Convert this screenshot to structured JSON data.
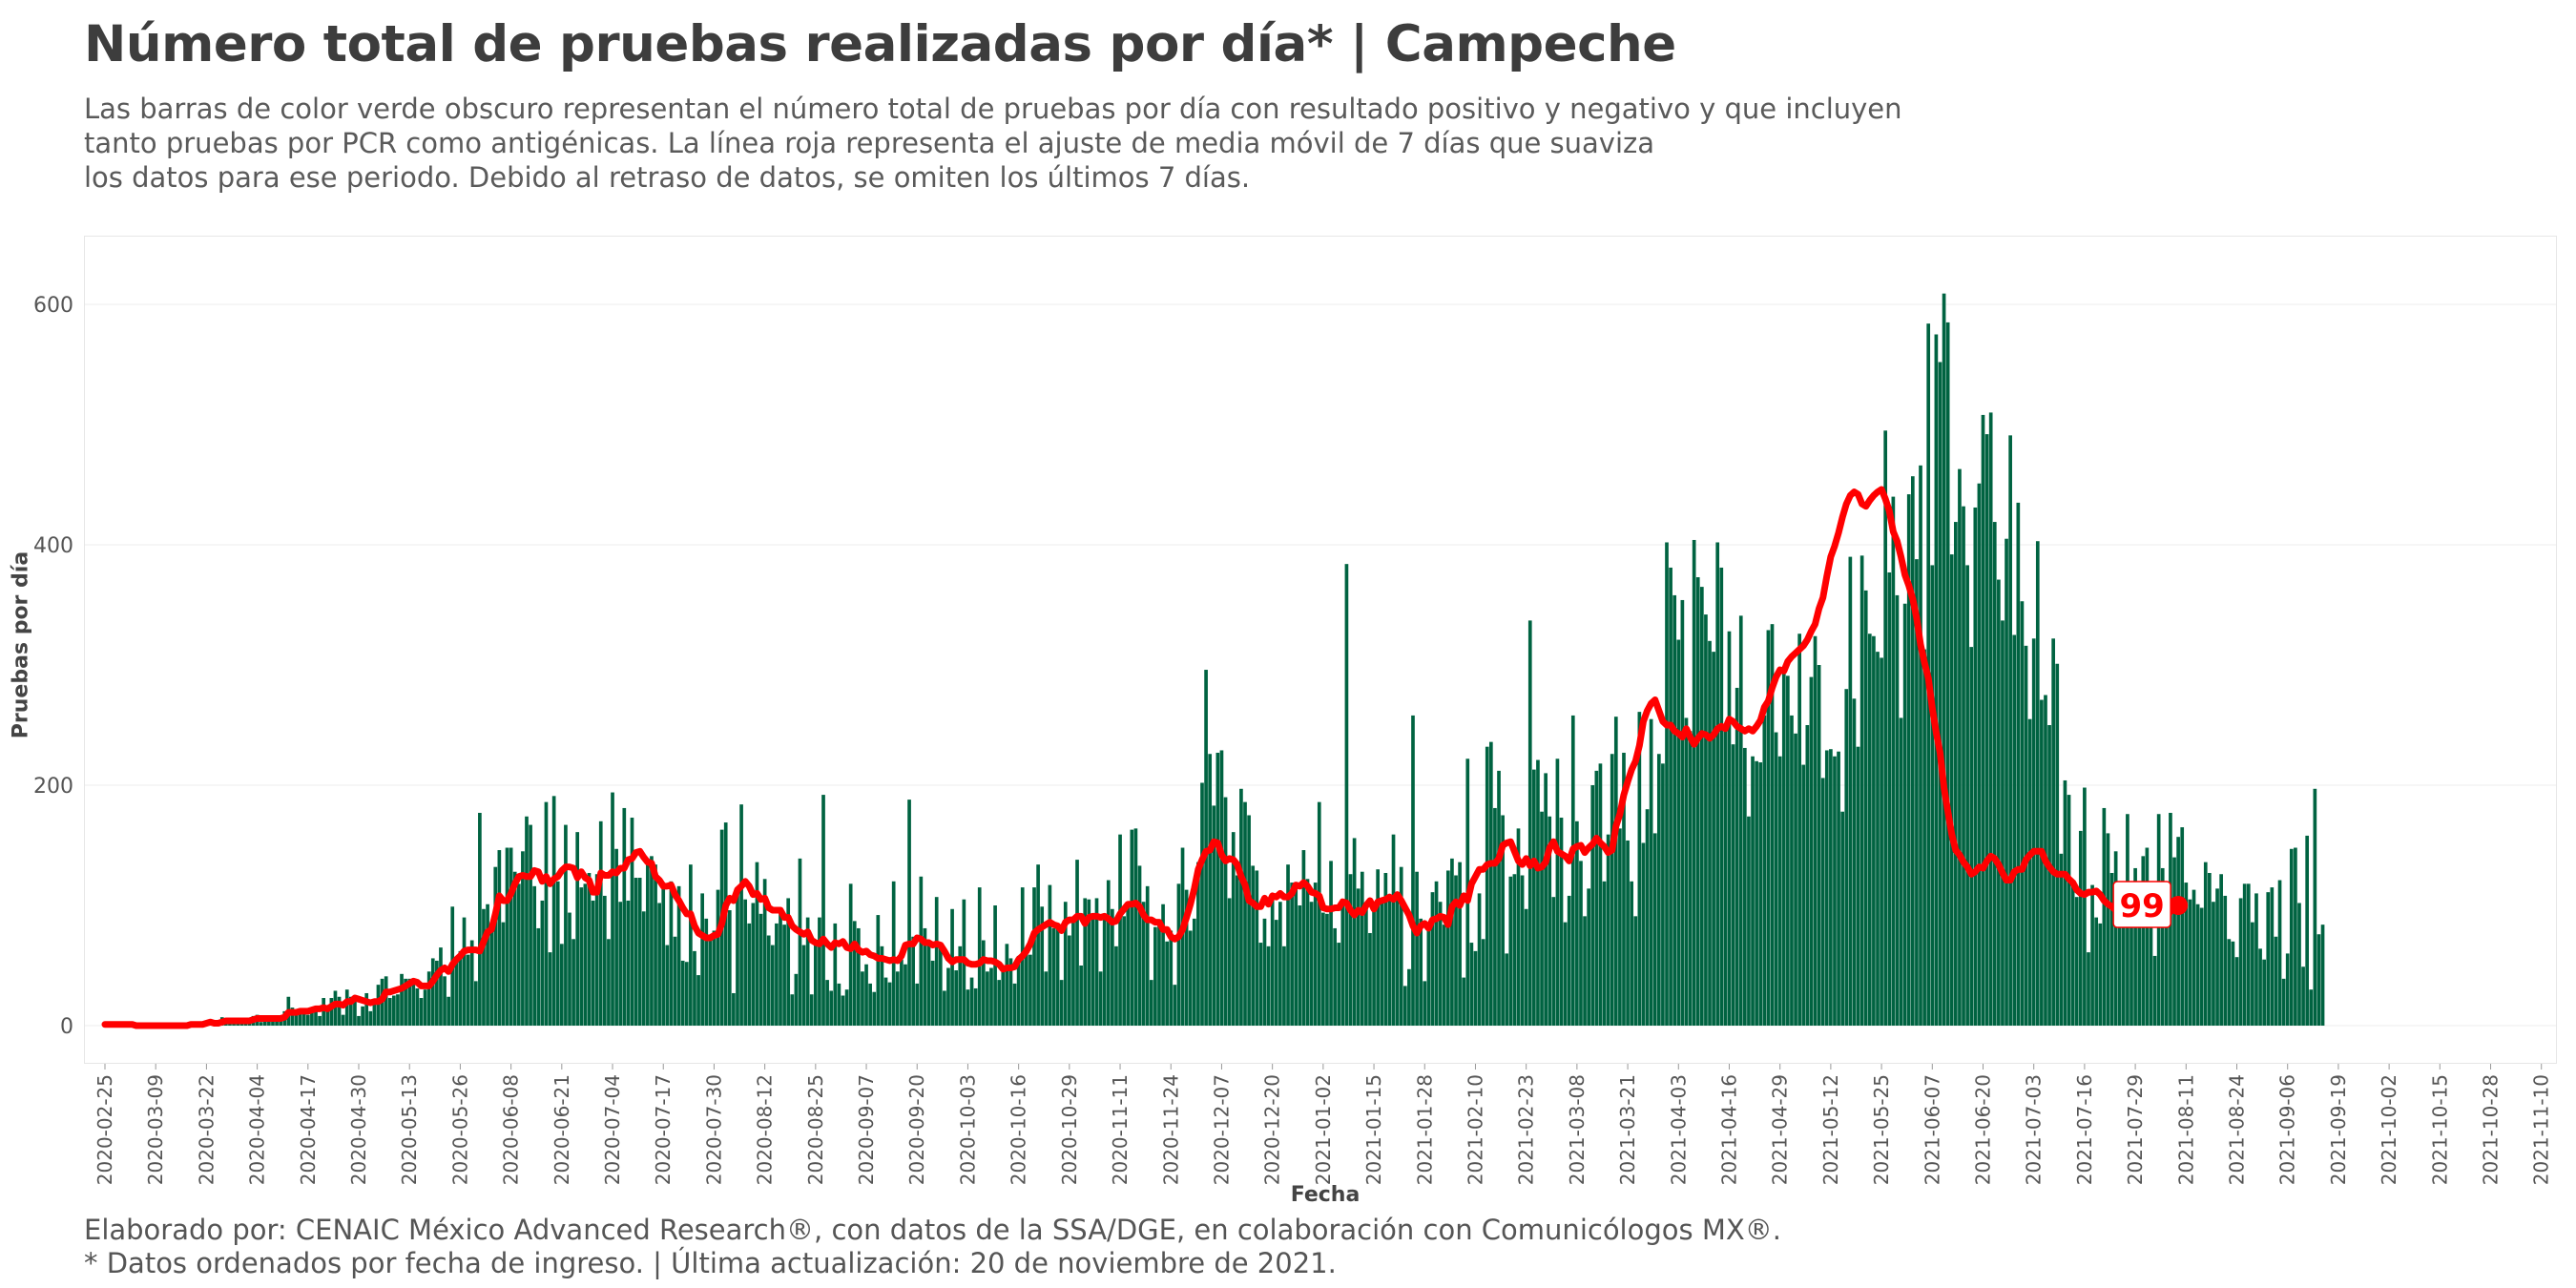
{
  "header": {
    "title": "Número total de pruebas realizadas por día* | Campeche",
    "subtitle_lines": [
      "Las barras de color verde obscuro representan el número total de pruebas por día con resultado positivo y negativo y que incluyen",
      "tanto pruebas por PCR como antigénicas. La línea roja representa el ajuste de media móvil de 7 días que suaviza",
      "los datos para ese periodo. Debido al retraso de datos, se omiten los últimos 7 días."
    ]
  },
  "footer": {
    "caption_lines": [
      "Elaborado por: CENAIC México Advanced Research®, con datos de la SSA/DGE, en colaboración con Comunicólogos MX®.",
      "* Datos ordenados por fecha de ingreso. | Última actualización: 20 de noviembre de 2021."
    ]
  },
  "colors": {
    "bars": "#006341",
    "moving_average": "#ff0000",
    "grid": "#eeeeee"
  },
  "chart_data": {
    "type": "bar",
    "title": "Número total de pruebas realizadas por día* | Campeche",
    "xlabel": "Fecha",
    "ylabel": "Pruebas por día",
    "x_start": "2020-02-25",
    "x_end": "2021-11-13",
    "ylim": [
      0,
      650
    ],
    "y_ticks": [
      0,
      200,
      400,
      600
    ],
    "x_tick_labels": [
      "2020-02-25",
      "2020-03-09",
      "2020-03-22",
      "2020-04-04",
      "2020-04-17",
      "2020-04-30",
      "2020-05-13",
      "2020-05-26",
      "2020-06-08",
      "2020-06-21",
      "2020-07-04",
      "2020-07-17",
      "2020-07-30",
      "2020-08-12",
      "2020-08-25",
      "2020-09-07",
      "2020-09-20",
      "2020-10-03",
      "2020-10-16",
      "2020-10-29",
      "2020-11-11",
      "2020-11-24",
      "2020-12-07",
      "2020-12-20",
      "2021-01-02",
      "2021-01-15",
      "2021-01-28",
      "2021-02-10",
      "2021-02-23",
      "2021-03-08",
      "2021-03-21",
      "2021-04-03",
      "2021-04-16",
      "2021-04-29",
      "2021-05-12",
      "2021-05-25",
      "2021-06-07",
      "2021-06-20",
      "2021-07-03",
      "2021-07-16",
      "2021-07-29",
      "2021-08-11",
      "2021-08-24",
      "2021-09-06",
      "2021-09-19",
      "2021-10-02",
      "2021-10-15",
      "2021-10-28",
      "2021-11-10"
    ],
    "series": [
      {
        "kind": "bar",
        "values": [
          1,
          0,
          1,
          1,
          0,
          0,
          0,
          0,
          1,
          0,
          0,
          1,
          0,
          1,
          0,
          0,
          0,
          1,
          0,
          1,
          0,
          1,
          1,
          3,
          3,
          2,
          2,
          3,
          1,
          2,
          7,
          4,
          3,
          6,
          4,
          3,
          4,
          5,
          8,
          9,
          3,
          4,
          7,
          4,
          6,
          7,
          12,
          24,
          15,
          9,
          12,
          12,
          9,
          11,
          16,
          8,
          23,
          14,
          23,
          29,
          24,
          9,
          30,
          24,
          25,
          8,
          16,
          27,
          12,
          22,
          34,
          39,
          41,
          23,
          25,
          26,
          43,
          39,
          39,
          37,
          31,
          23,
          30,
          45,
          56,
          54,
          65,
          41,
          24,
          99,
          54,
          62,
          90,
          59,
          71,
          37,
          177,
          97,
          101,
          86,
          132,
          146,
          86,
          148,
          148,
          128,
          118,
          145,
          174,
          167,
          116,
          81,
          104,
          186,
          61,
          191,
          120,
          68,
          167,
          94,
          72,
          161,
          115,
          118,
          127,
          104,
          126,
          170,
          108,
          72,
          194,
          147,
          103,
          181,
          104,
          173,
          123,
          123,
          95,
          139,
          141,
          134,
          102,
          117,
          67,
          120,
          74,
          116,
          54,
          53,
          134,
          62,
          42,
          110,
          89,
          73,
          79,
          113,
          163,
          169,
          96,
          27,
          114,
          184,
          105,
          85,
          102,
          136,
          93,
          122,
          75,
          67,
          85,
          94,
          84,
          106,
          26,
          43,
          139,
          67,
          90,
          26,
          67,
          90,
          192,
          38,
          29,
          85,
          35,
          25,
          30,
          118,
          87,
          81,
          45,
          51,
          35,
          28,
          92,
          66,
          40,
          36,
          120,
          45,
          55,
          51,
          188,
          74,
          35,
          124,
          81,
          68,
          54,
          107,
          67,
          29,
          48,
          97,
          46,
          66,
          105,
          30,
          40,
          31,
          115,
          71,
          45,
          48,
          100,
          38,
          49,
          68,
          56,
          35,
          58,
          115,
          62,
          59,
          115,
          134,
          99,
          45,
          117,
          81,
          83,
          38,
          103,
          75,
          89,
          138,
          50,
          106,
          105,
          93,
          106,
          45,
          92,
          121,
          97,
          66,
          159,
          91,
          101,
          163,
          164,
          133,
          103,
          116,
          38,
          82,
          86,
          101,
          70,
          79,
          34,
          118,
          148,
          113,
          79,
          89,
          136,
          202,
          296,
          226,
          183,
          227,
          229,
          190,
          106,
          161,
          125,
          197,
          186,
          175,
          133,
          129,
          69,
          89,
          66,
          107,
          88,
          103,
          66,
          134,
          119,
          115,
          100,
          146,
          122,
          103,
          119,
          186,
          94,
          93,
          137,
          81,
          69,
          104,
          384,
          126,
          156,
          114,
          128,
          101,
          77,
          101,
          130,
          104,
          127,
          107,
          159,
          110,
          132,
          33,
          47,
          258,
          128,
          89,
          37,
          84,
          111,
          120,
          103,
          84,
          129,
          139,
          125,
          136,
          40,
          222,
          69,
          62,
          110,
          72,
          232,
          236,
          181,
          212,
          175,
          60,
          124,
          126,
          164,
          125,
          97,
          337,
          213,
          221,
          178,
          210,
          174,
          107,
          222,
          173,
          86,
          108,
          258,
          170,
          137,
          91,
          114,
          200,
          212,
          218,
          120,
          159,
          226,
          257,
          164,
          227,
          154,
          120,
          91,
          261,
          152,
          180,
          255,
          160,
          226,
          218,
          402,
          381,
          358,
          321,
          354,
          256,
          245,
          404,
          373,
          365,
          342,
          320,
          311,
          402,
          381,
          250,
          328,
          234,
          281,
          341,
          231,
          174,
          224,
          220,
          219,
          258,
          329,
          334,
          244,
          224,
          295,
          291,
          258,
          243,
          326,
          217,
          250,
          290,
          324,
          300,
          206,
          229,
          230,
          224,
          228,
          178,
          280,
          390,
          272,
          232,
          391,
          362,
          326,
          324,
          311,
          306,
          495,
          377,
          440,
          358,
          256,
          351,
          442,
          457,
          388,
          466,
          313,
          584,
          383,
          575,
          552,
          609,
          585,
          392,
          419,
          463,
          432,
          383,
          315,
          431,
          451,
          508,
          492,
          510,
          419,
          371,
          337,
          405,
          491,
          325,
          435,
          353,
          316,
          255,
          322,
          403,
          271,
          275,
          250,
          322,
          301,
          143,
          204,
          192,
          120,
          107,
          162,
          198,
          61,
          117,
          90,
          85,
          181,
          160,
          127,
          145,
          107,
          86,
          176,
          88,
          131,
          105,
          141,
          148,
          90,
          58,
          176,
          131,
          101,
          177,
          140,
          157,
          165,
          119,
          105,
          113,
          101,
          98,
          136,
          127,
          103,
          114,
          126,
          108,
          72,
          70,
          57,
          106,
          118,
          118,
          86,
          110,
          64,
          55,
          111,
          115,
          74,
          121,
          39,
          60,
          147,
          148,
          102,
          49,
          158,
          30,
          197,
          76,
          84
        ]
      },
      {
        "kind": "line",
        "name": "media móvil de 7 días",
        "values": [
          1,
          1,
          1,
          1,
          1,
          1,
          1,
          1,
          0,
          0,
          0,
          0,
          0,
          0,
          0,
          0,
          0,
          0,
          0,
          0,
          0,
          0,
          1,
          1,
          1,
          1,
          2,
          3,
          2,
          2,
          3,
          4,
          4,
          4,
          4,
          4,
          4,
          4,
          5,
          6,
          6,
          6,
          6,
          6,
          6,
          6,
          7,
          11,
          11,
          11,
          12,
          12,
          12,
          13,
          14,
          14,
          15,
          14,
          16,
          18,
          18,
          17,
          20,
          20,
          23,
          22,
          21,
          20,
          19,
          20,
          20,
          22,
          28,
          28,
          29,
          30,
          31,
          33,
          35,
          37,
          36,
          33,
          33,
          33,
          37,
          42,
          46,
          48,
          45,
          51,
          55,
          58,
          62,
          63,
          63,
          63,
          62,
          70,
          78,
          80,
          93,
          108,
          104,
          104,
          110,
          118,
          124,
          125,
          124,
          124,
          129,
          128,
          120,
          124,
          118,
          122,
          124,
          129,
          132,
          132,
          131,
          123,
          128,
          123,
          121,
          111,
          111,
          127,
          125,
          125,
          128,
          127,
          131,
          131,
          138,
          139,
          144,
          145,
          140,
          136,
          135,
          124,
          121,
          116,
          116,
          117,
          109,
          104,
          98,
          93,
          93,
          83,
          77,
          75,
          73,
          73,
          75,
          76,
          85,
          100,
          106,
          104,
          113,
          116,
          120,
          116,
          109,
          110,
          105,
          106,
          98,
          96,
          96,
          96,
          90,
          90,
          83,
          80,
          78,
          76,
          78,
          71,
          69,
          68,
          72,
          68,
          65,
          69,
          68,
          70,
          65,
          64,
          68,
          63,
          61,
          62,
          59,
          58,
          56,
          56,
          55,
          54,
          55,
          54,
          58,
          67,
          68,
          68,
          73,
          72,
          69,
          69,
          67,
          68,
          67,
          62,
          56,
          53,
          55,
          55,
          55,
          52,
          51,
          51,
          52,
          55,
          54,
          54,
          53,
          51,
          47,
          48,
          48,
          49,
          55,
          58,
          62,
          68,
          77,
          80,
          82,
          84,
          86,
          84,
          83,
          79,
          86,
          88,
          88,
          91,
          91,
          85,
          90,
          91,
          91,
          90,
          91,
          89,
          86,
          87,
          93,
          97,
          101,
          101,
          102,
          99,
          92,
          88,
          88,
          86,
          86,
          80,
          80,
          74,
          72,
          74,
          80,
          90,
          101,
          114,
          130,
          138,
          145,
          146,
          153,
          152,
          142,
          137,
          139,
          138,
          134,
          124,
          117,
          104,
          102,
          99,
          99,
          106,
          101,
          108,
          107,
          110,
          107,
          107,
          110,
          117,
          116,
          119,
          116,
          111,
          110,
          108,
          98,
          97,
          97,
          98,
          98,
          103,
          102,
          96,
          92,
          96,
          94,
          100,
          104,
          97,
          103,
          104,
          105,
          107,
          105,
          109,
          104,
          98,
          92,
          83,
          77,
          83,
          85,
          81,
          88,
          89,
          91,
          90,
          84,
          99,
          103,
          100,
          108,
          104,
          118,
          124,
          130,
          130,
          134,
          135,
          135,
          139,
          150,
          152,
          153,
          145,
          137,
          134,
          139,
          133,
          137,
          131,
          132,
          136,
          148,
          153,
          145,
          143,
          141,
          137,
          147,
          149,
          150,
          144,
          148,
          151,
          156,
          152,
          149,
          144,
          146,
          166,
          176,
          192,
          203,
          213,
          220,
          233,
          253,
          262,
          268,
          271,
          262,
          253,
          250,
          250,
          245,
          243,
          240,
          247,
          240,
          234,
          239,
          243,
          242,
          239,
          242,
          247,
          249,
          247,
          255,
          253,
          249,
          247,
          245,
          247,
          245,
          249,
          254,
          265,
          270,
          281,
          290,
          296,
          295,
          303,
          307,
          310,
          313,
          316,
          321,
          328,
          334,
          347,
          356,
          374,
          390,
          399,
          410,
          423,
          434,
          441,
          444,
          442,
          434,
          432,
          437,
          441,
          444,
          446,
          438,
          428,
          411,
          403,
          390,
          375,
          366,
          355,
          339,
          317,
          302,
          289,
          264,
          244,
          227,
          198,
          178,
          159,
          146,
          142,
          136,
          132,
          126,
          128,
          132,
          131,
          137,
          141,
          139,
          134,
          127,
          121,
          121,
          128,
          130,
          130,
          138,
          142,
          145,
          145,
          145,
          137,
          132,
          128,
          126,
          126,
          126,
          122,
          119,
          113,
          110,
          109,
          111,
          111,
          112,
          109,
          104,
          101,
          99,
          96,
          94,
          97,
          99,
          102,
          101,
          102,
          102,
          101,
          99,
          100,
          94,
          91,
          91,
          95,
          99,
          100
        ]
      }
    ],
    "last_value_label": "99"
  }
}
